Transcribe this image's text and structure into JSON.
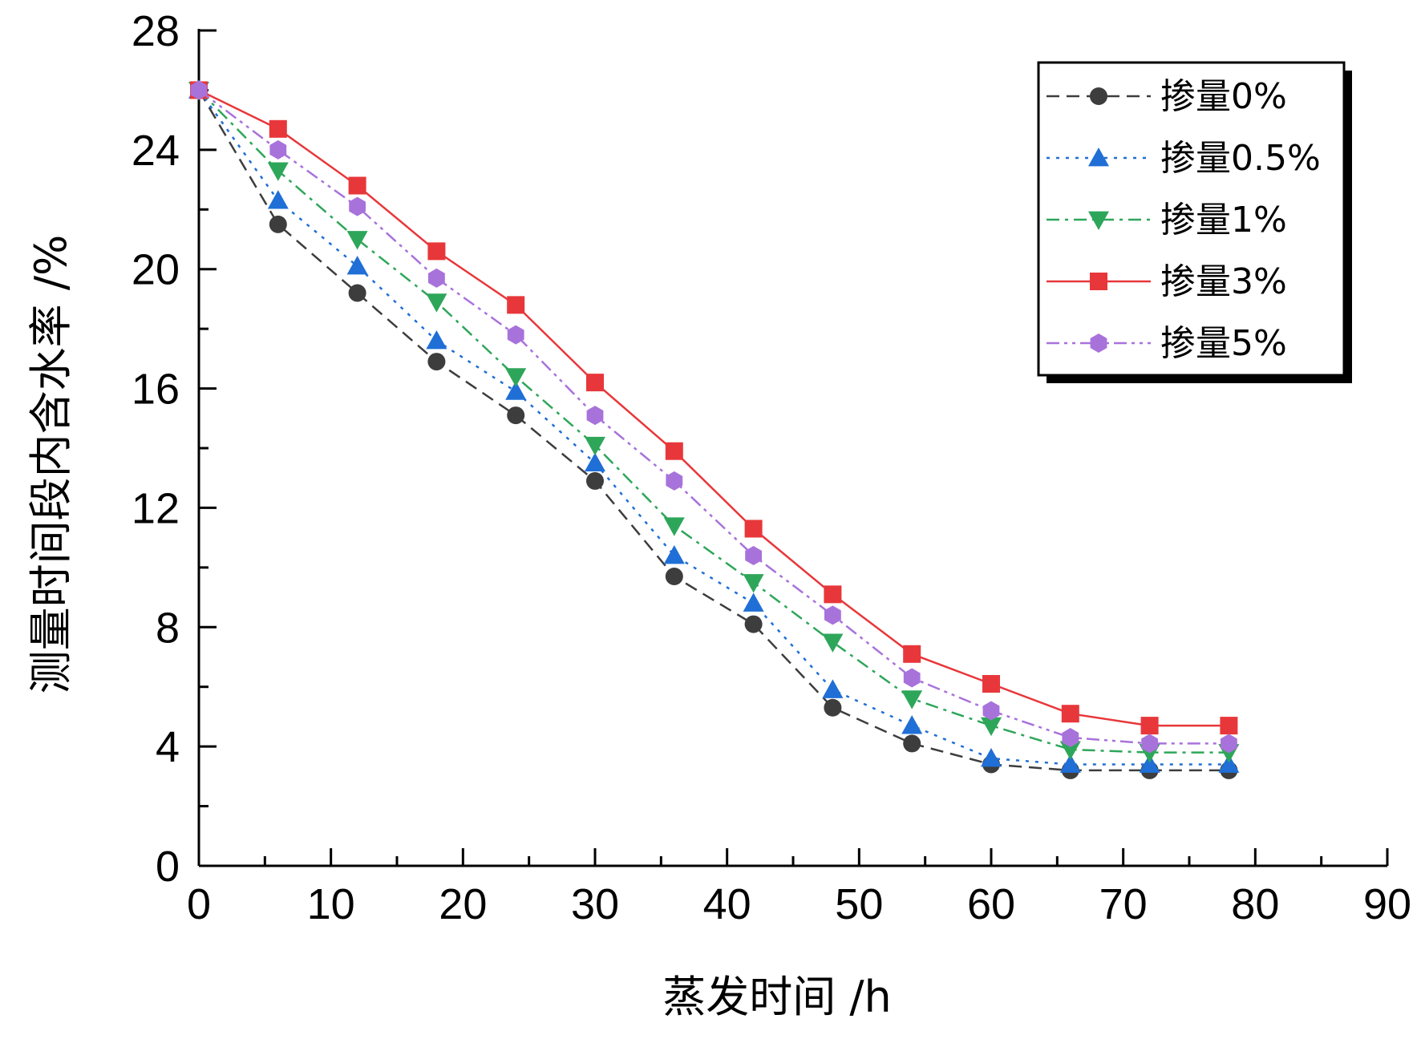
{
  "chart_data": {
    "type": "line",
    "title": "",
    "xlabel": "蒸发时间 /h",
    "ylabel": "测量时间段内含水率 /%",
    "xlim": [
      0,
      90
    ],
    "ylim": [
      0,
      28
    ],
    "x_ticks": [
      0,
      10,
      20,
      30,
      40,
      50,
      60,
      70,
      80,
      90
    ],
    "y_ticks": [
      0,
      4,
      8,
      12,
      16,
      20,
      24,
      28
    ],
    "grid": false,
    "legend_position": "top-right",
    "x": [
      0,
      6,
      12,
      18,
      24,
      30,
      36,
      42,
      48,
      54,
      60,
      66,
      72,
      78
    ],
    "series": [
      {
        "name": "掺量0%",
        "color": "#3d3d3d",
        "line_style": "dashed",
        "marker": "circle",
        "values": [
          26.0,
          21.5,
          19.2,
          16.9,
          15.1,
          12.9,
          9.7,
          8.1,
          5.3,
          4.1,
          3.4,
          3.2,
          3.2,
          3.2
        ]
      },
      {
        "name": "掺量0.5%",
        "color": "#1f6fd6",
        "line_style": "dotted",
        "marker": "triangle-up",
        "values": [
          26.0,
          22.3,
          20.1,
          17.6,
          15.9,
          13.5,
          10.4,
          8.8,
          5.9,
          4.7,
          3.6,
          3.4,
          3.4,
          3.4
        ]
      },
      {
        "name": "掺量1%",
        "color": "#2ea65a",
        "line_style": "dash-dot",
        "marker": "triangle-down",
        "values": [
          26.0,
          23.3,
          21.0,
          18.9,
          16.4,
          14.1,
          11.4,
          9.5,
          7.5,
          5.6,
          4.7,
          3.9,
          3.8,
          3.8
        ]
      },
      {
        "name": "掺量3%",
        "color": "#e8373a",
        "line_style": "solid",
        "marker": "square",
        "values": [
          26.0,
          24.7,
          22.8,
          20.6,
          18.8,
          16.2,
          13.9,
          11.3,
          9.1,
          7.1,
          6.1,
          5.1,
          4.7,
          4.7
        ]
      },
      {
        "name": "掺量5%",
        "color": "#a872db",
        "line_style": "dash-dot-dot",
        "marker": "hexagon",
        "values": [
          26.0,
          24.0,
          22.1,
          19.7,
          17.8,
          15.1,
          12.9,
          10.4,
          8.4,
          6.3,
          5.2,
          4.3,
          4.1,
          4.1
        ]
      }
    ]
  }
}
